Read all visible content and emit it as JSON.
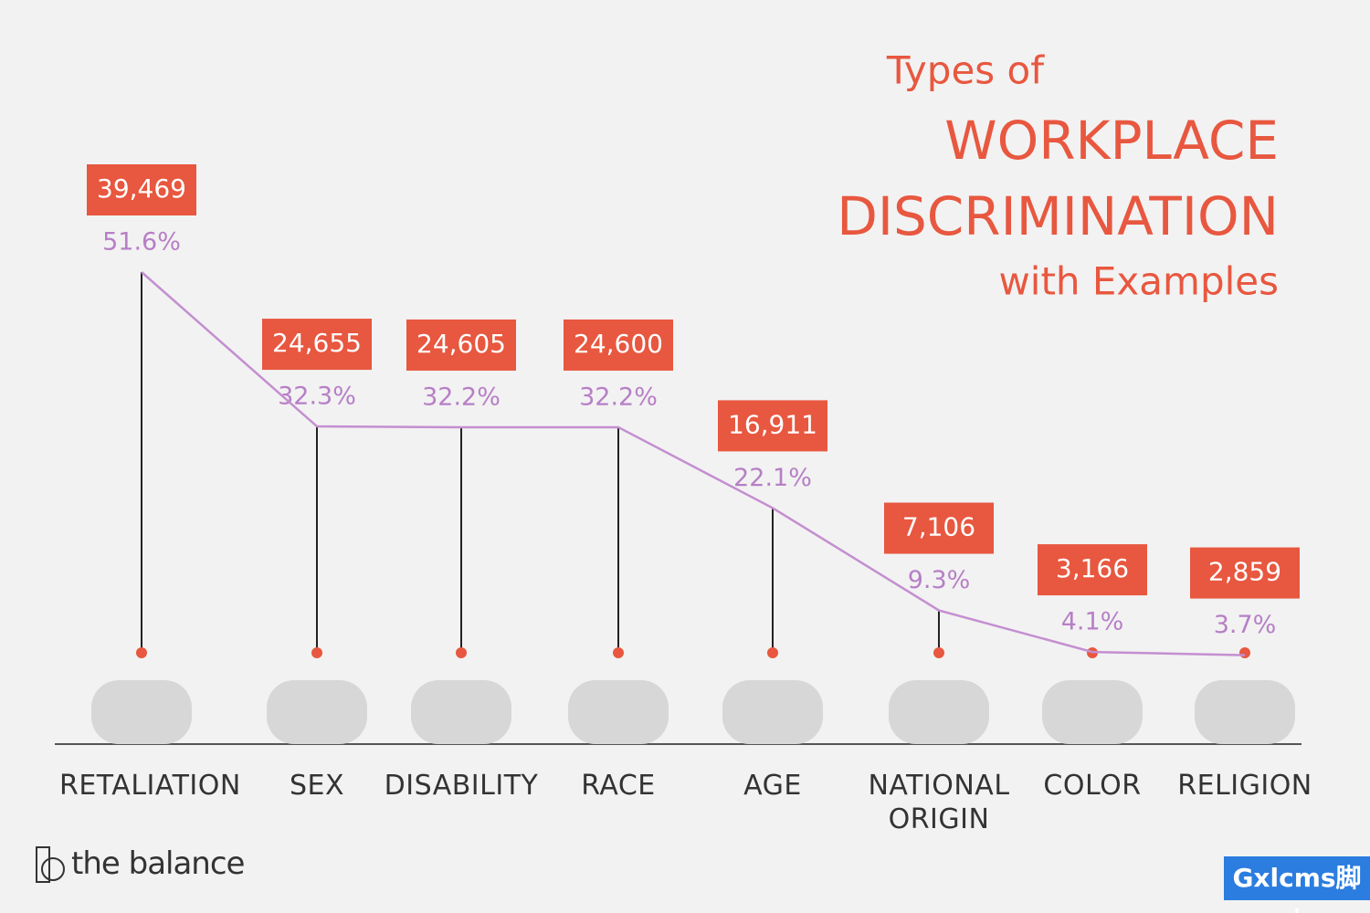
{
  "chart_data": {
    "type": "line",
    "title": {
      "lines": [
        "Types of",
        "WORKPLACE",
        "DISCRIMINATION",
        "with Examples"
      ]
    },
    "categories": [
      "RETALIATION",
      "SEX",
      "DISABILITY",
      "RACE",
      "AGE",
      "NATIONAL ORIGIN",
      "COLOR",
      "RELIGION"
    ],
    "values": [
      51.6,
      32.3,
      32.2,
      32.2,
      22.1,
      9.3,
      4.1,
      3.7
    ],
    "value_labels": [
      "51.6%",
      "32.3%",
      "32.2%",
      "32.2%",
      "22.1%",
      "9.3%",
      "4.1%",
      "3.7%"
    ],
    "counts": [
      39469,
      24655,
      24605,
      24600,
      16911,
      7106,
      3166,
      2859
    ],
    "count_labels": [
      "39,469",
      "24,655",
      "24,605",
      "24,600",
      "16,911",
      "7,106",
      "3,166",
      "2,859"
    ],
    "color": "#c48fd0",
    "box_color": "#e8573f",
    "brand": "the balance",
    "watermark": "Gxlcms脚本"
  }
}
